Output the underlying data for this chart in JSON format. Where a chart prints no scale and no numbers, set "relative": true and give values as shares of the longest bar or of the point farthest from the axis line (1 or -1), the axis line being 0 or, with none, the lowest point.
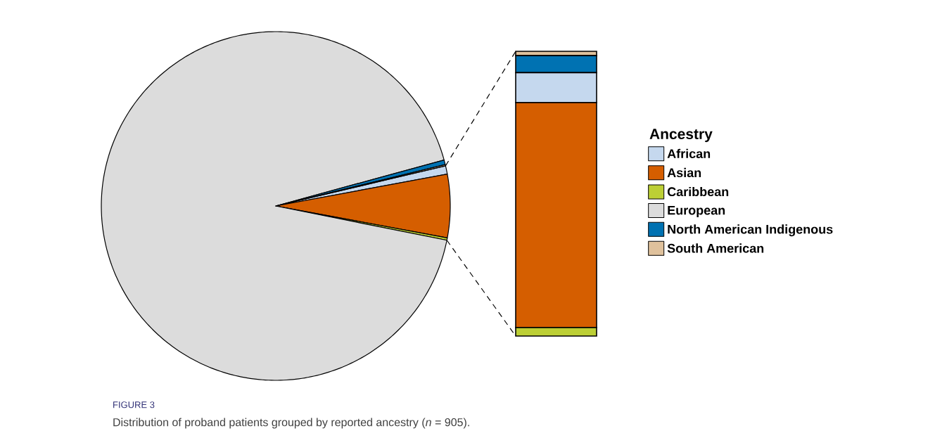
{
  "chart_data": [
    {
      "type": "pie",
      "legend_title": "Ancestry",
      "legend": "right",
      "categories": [
        "African",
        "Asian",
        "Caribbean",
        "European",
        "North American Indigenous",
        "South American"
      ],
      "values": [
        0.77,
        5.86,
        0.22,
        92.6,
        0.44,
        0.11
      ],
      "colors": [
        "#c5d8ee",
        "#d55e00",
        "#bccf35",
        "#dcdcdc",
        "#0072b2",
        "#dfc19c"
      ],
      "annotations": [
        "FIGURE 3",
        "Distribution of proband patients grouped by reported ancestry (*n* = 905)."
      ]
    },
    {
      "type": "bar",
      "stacked": true,
      "relative": true,
      "categories": [
        null
      ],
      "series": [
        {
          "color": "#bccf35",
          "values": [
            0.03
          ]
        },
        {
          "color": "#d55e00",
          "values": [
            0.79
          ]
        },
        {
          "color": "#c5d8ee",
          "values": [
            0.105
          ]
        },
        {
          "color": "#0072b2",
          "values": [
            0.06
          ]
        },
        {
          "color": "#dfc19c",
          "values": [
            0.015
          ]
        }
      ]
    }
  ]
}
